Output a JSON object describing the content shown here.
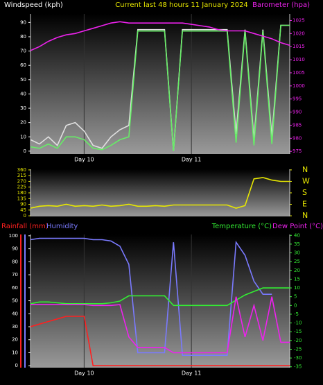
{
  "chart_data": [
    {
      "type": "line",
      "title": "Current last 48 hours 11 January 2024",
      "ylabel": "Windspeed (kph)",
      "y2label": "Barometer (hpa)",
      "x": [
        0,
        2,
        4,
        6,
        8,
        10,
        12,
        14,
        16,
        18,
        20,
        22,
        24,
        26,
        28,
        30,
        32,
        34,
        36,
        38,
        40,
        42,
        44,
        46,
        48,
        50,
        52,
        54,
        56,
        58
      ],
      "xlim": [
        0,
        58
      ],
      "xticks": [
        {
          "value": 12,
          "label": "Day 10"
        },
        {
          "value": 36,
          "label": "Day 11"
        }
      ],
      "ylim": [
        -2,
        96
      ],
      "yticks": [
        0,
        10,
        20,
        30,
        40,
        50,
        60,
        70,
        80,
        90
      ],
      "y2lim": [
        974,
        1027.5
      ],
      "y2ticks": [
        975,
        980,
        985,
        990,
        995,
        1000,
        1005,
        1010,
        1015,
        1020,
        1025
      ],
      "series": [
        {
          "color": "#e0e0e0",
          "values": [
            8,
            5,
            10,
            4,
            18,
            20,
            14,
            4,
            2,
            10,
            15,
            18,
            85,
            85,
            85,
            85,
            0,
            85,
            85,
            85,
            85,
            85,
            85,
            12,
            85,
            8,
            85,
            10,
            88,
            88
          ]
        },
        {
          "color": "#66ee66",
          "values": [
            3,
            2,
            5,
            2,
            10,
            10,
            8,
            2,
            1,
            4,
            8,
            10,
            84,
            84,
            84,
            84,
            0,
            84,
            84,
            84,
            84,
            84,
            84,
            6,
            84,
            4,
            84,
            5,
            88,
            88
          ]
        },
        {
          "color": "#ee22ee",
          "axis": "y2",
          "values": [
            1013.5,
            1015,
            1017,
            1018.5,
            1019.5,
            1020,
            1021,
            1022,
            1023,
            1024,
            1024.5,
            1024,
            1024,
            1024,
            1024,
            1024,
            1024,
            1024,
            1023.5,
            1023,
            1022.5,
            1021.5,
            1021,
            1021,
            1021,
            1020,
            1019,
            1018,
            1016.5,
            1015.5
          ]
        }
      ]
    },
    {
      "type": "line",
      "x": [
        0,
        2,
        4,
        6,
        8,
        10,
        12,
        14,
        16,
        18,
        20,
        22,
        24,
        26,
        28,
        30,
        32,
        34,
        36,
        38,
        40,
        42,
        44,
        46,
        48,
        50,
        52,
        54,
        56,
        58
      ],
      "xlim": [
        0,
        58
      ],
      "ylim": [
        -5,
        365
      ],
      "yticks": [
        0,
        45,
        90,
        135,
        180,
        225,
        270,
        315,
        360
      ],
      "y2lim": [
        -5,
        365
      ],
      "y2ticks": [
        {
          "value": 0,
          "label": "N"
        },
        {
          "value": 90,
          "label": "E"
        },
        {
          "value": 180,
          "label": "S"
        },
        {
          "value": 270,
          "label": "W"
        },
        {
          "value": 360,
          "label": "N"
        }
      ],
      "series": [
        {
          "color": "#e8e800",
          "values": [
            60,
            75,
            80,
            75,
            90,
            75,
            80,
            75,
            85,
            75,
            80,
            90,
            75,
            75,
            80,
            75,
            85,
            85,
            85,
            85,
            85,
            85,
            85,
            60,
            80,
            290,
            300,
            280,
            270,
            270
          ]
        }
      ]
    },
    {
      "type": "line",
      "x": [
        0,
        2,
        4,
        6,
        8,
        10,
        12,
        14,
        16,
        18,
        20,
        22,
        24,
        26,
        28,
        30,
        32,
        34,
        36,
        38,
        40,
        42,
        44,
        46,
        48,
        50,
        52,
        54,
        56,
        58
      ],
      "xlim": [
        0,
        58
      ],
      "xticks": [
        {
          "value": 12,
          "label": "Day 10"
        },
        {
          "value": 36,
          "label": "Day 11"
        }
      ],
      "ylim": [
        -1.5,
        101
      ],
      "yticks": [
        0,
        10,
        20,
        30,
        40,
        50,
        60,
        70,
        80,
        90,
        100
      ],
      "y2lim": [
        -35.5,
        40.5
      ],
      "y2ticks": [
        -35,
        -30,
        -25,
        -20,
        -15,
        -10,
        -5,
        0,
        5,
        10,
        15,
        20,
        25,
        30,
        35,
        40
      ],
      "series": [
        {
          "name": "Rainfall (mm)",
          "color": "#ff2020",
          "values": [
            30,
            32,
            34,
            36,
            38,
            38,
            38,
            0,
            0,
            0,
            0,
            0,
            0,
            0,
            0,
            0,
            0,
            0,
            0,
            0,
            0,
            0,
            0,
            0,
            0,
            0,
            0,
            0,
            0,
            0
          ]
        },
        {
          "name": "Humidity",
          "color": "#7a7aff",
          "values": [
            97,
            98,
            98,
            98,
            98,
            98,
            98,
            97,
            97,
            96,
            92,
            78,
            10,
            10,
            10,
            10,
            95,
            8,
            8,
            8,
            8,
            8,
            8,
            95,
            85,
            65,
            55,
            55,
            null,
            null
          ]
        },
        {
          "name": "Temperature (°C)",
          "color": "#33ee33",
          "axis": "y2",
          "values": [
            1,
            2,
            2,
            1.5,
            1,
            1,
            1,
            1,
            1,
            1.5,
            2.5,
            5.5,
            5.5,
            5.5,
            5.5,
            5.5,
            0,
            0,
            0,
            0,
            0,
            0,
            0,
            3,
            6,
            8,
            10,
            10,
            10,
            10
          ]
        },
        {
          "name": "Dew Point (°C)",
          "color": "#ee22ee",
          "axis": "y2",
          "values": [
            0.5,
            0.5,
            0.5,
            0.5,
            0.5,
            0.5,
            0.5,
            0,
            0,
            0,
            0.5,
            -18,
            -24,
            -24,
            -24,
            -24,
            -27,
            -27,
            -27,
            -27,
            -27,
            -27,
            -27,
            5,
            -18,
            0,
            -20,
            5,
            -21,
            -21
          ]
        }
      ]
    }
  ]
}
